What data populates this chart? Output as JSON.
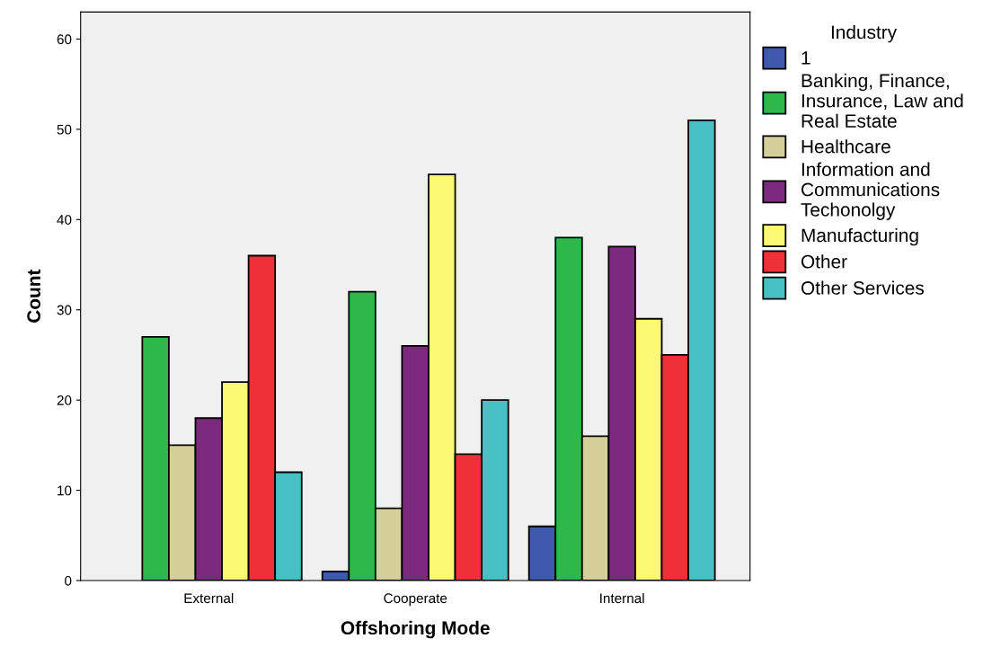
{
  "chart_data": {
    "type": "bar",
    "xlabel": "Offshoring Mode",
    "ylabel": "Count",
    "legend_title": "Industry",
    "categories": [
      "External",
      "Cooperate",
      "Internal"
    ],
    "series": [
      {
        "name": "1",
        "color": "#3e58ac",
        "values": [
          null,
          1,
          6
        ]
      },
      {
        "name": "Banking, Finance,\nInsurance, Law and\nReal Estate",
        "color": "#2eb84b",
        "values": [
          27,
          32,
          38
        ]
      },
      {
        "name": "Healthcare",
        "color": "#d4ce99",
        "values": [
          15,
          8,
          16
        ]
      },
      {
        "name": "Information and\nCommunications\nTechonolgy",
        "color": "#7b2a7e",
        "values": [
          18,
          26,
          37
        ]
      },
      {
        "name": "Manufacturing",
        "color": "#fbf873",
        "values": [
          22,
          45,
          29
        ]
      },
      {
        "name": "Other",
        "color": "#ee3139",
        "values": [
          36,
          14,
          25
        ]
      },
      {
        "name": "Other Services",
        "color": "#47c0c4",
        "values": [
          12,
          20,
          51
        ]
      }
    ],
    "ylim": [
      0,
      63
    ],
    "yticks": [
      0,
      10,
      20,
      30,
      40,
      50,
      60
    ],
    "grid": false,
    "legend": "right"
  }
}
